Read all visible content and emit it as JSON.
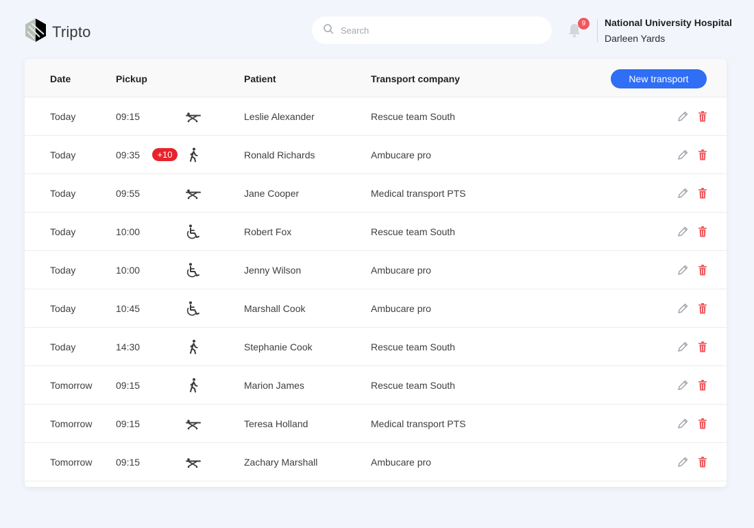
{
  "header": {
    "app_name": "Tripto",
    "search_placeholder": "Search",
    "notification_count": "9",
    "organization": "National University Hospital",
    "user_name": "Darleen Yards"
  },
  "table": {
    "columns": {
      "date": "Date",
      "pickup": "Pickup",
      "patient": "Patient",
      "company": "Transport company"
    },
    "new_button": "New transport",
    "rows": [
      {
        "date": "Today",
        "time": "09:15",
        "extra": "",
        "mode": "stretcher-icon",
        "patient": "Leslie Alexander",
        "company": "Rescue team South"
      },
      {
        "date": "Today",
        "time": "09:35",
        "extra": "+10",
        "mode": "walking-icon",
        "patient": "Ronald Richards",
        "company": "Ambucare pro"
      },
      {
        "date": "Today",
        "time": "09:55",
        "extra": "",
        "mode": "stretcher-icon",
        "patient": "Jane Cooper",
        "company": "Medical transport PTS"
      },
      {
        "date": "Today",
        "time": "10:00",
        "extra": "",
        "mode": "wheelchair-icon",
        "patient": "Robert Fox",
        "company": "Rescue team South"
      },
      {
        "date": "Today",
        "time": "10:00",
        "extra": "",
        "mode": "wheelchair-icon",
        "patient": "Jenny Wilson",
        "company": "Ambucare pro"
      },
      {
        "date": "Today",
        "time": "10:45",
        "extra": "",
        "mode": "wheelchair-icon",
        "patient": "Marshall Cook",
        "company": "Ambucare pro"
      },
      {
        "date": "Today",
        "time": "14:30",
        "extra": "",
        "mode": "walking-icon",
        "patient": "Stephanie Cook",
        "company": "Rescue team South"
      },
      {
        "date": "Tomorrow",
        "time": "09:15",
        "extra": "",
        "mode": "walking-icon",
        "patient": "Marion James",
        "company": "Rescue team South"
      },
      {
        "date": "Tomorrow",
        "time": "09:15",
        "extra": "",
        "mode": "stretcher-icon",
        "patient": "Teresa Holland",
        "company": "Medical transport PTS"
      },
      {
        "date": "Tomorrow",
        "time": "09:15",
        "extra": "",
        "mode": "stretcher-icon",
        "patient": "Zachary Marshall",
        "company": "Ambucare pro"
      }
    ]
  },
  "colors": {
    "accent": "#2f6ef5",
    "danger": "#e8222c",
    "background": "#f2f5fc"
  }
}
